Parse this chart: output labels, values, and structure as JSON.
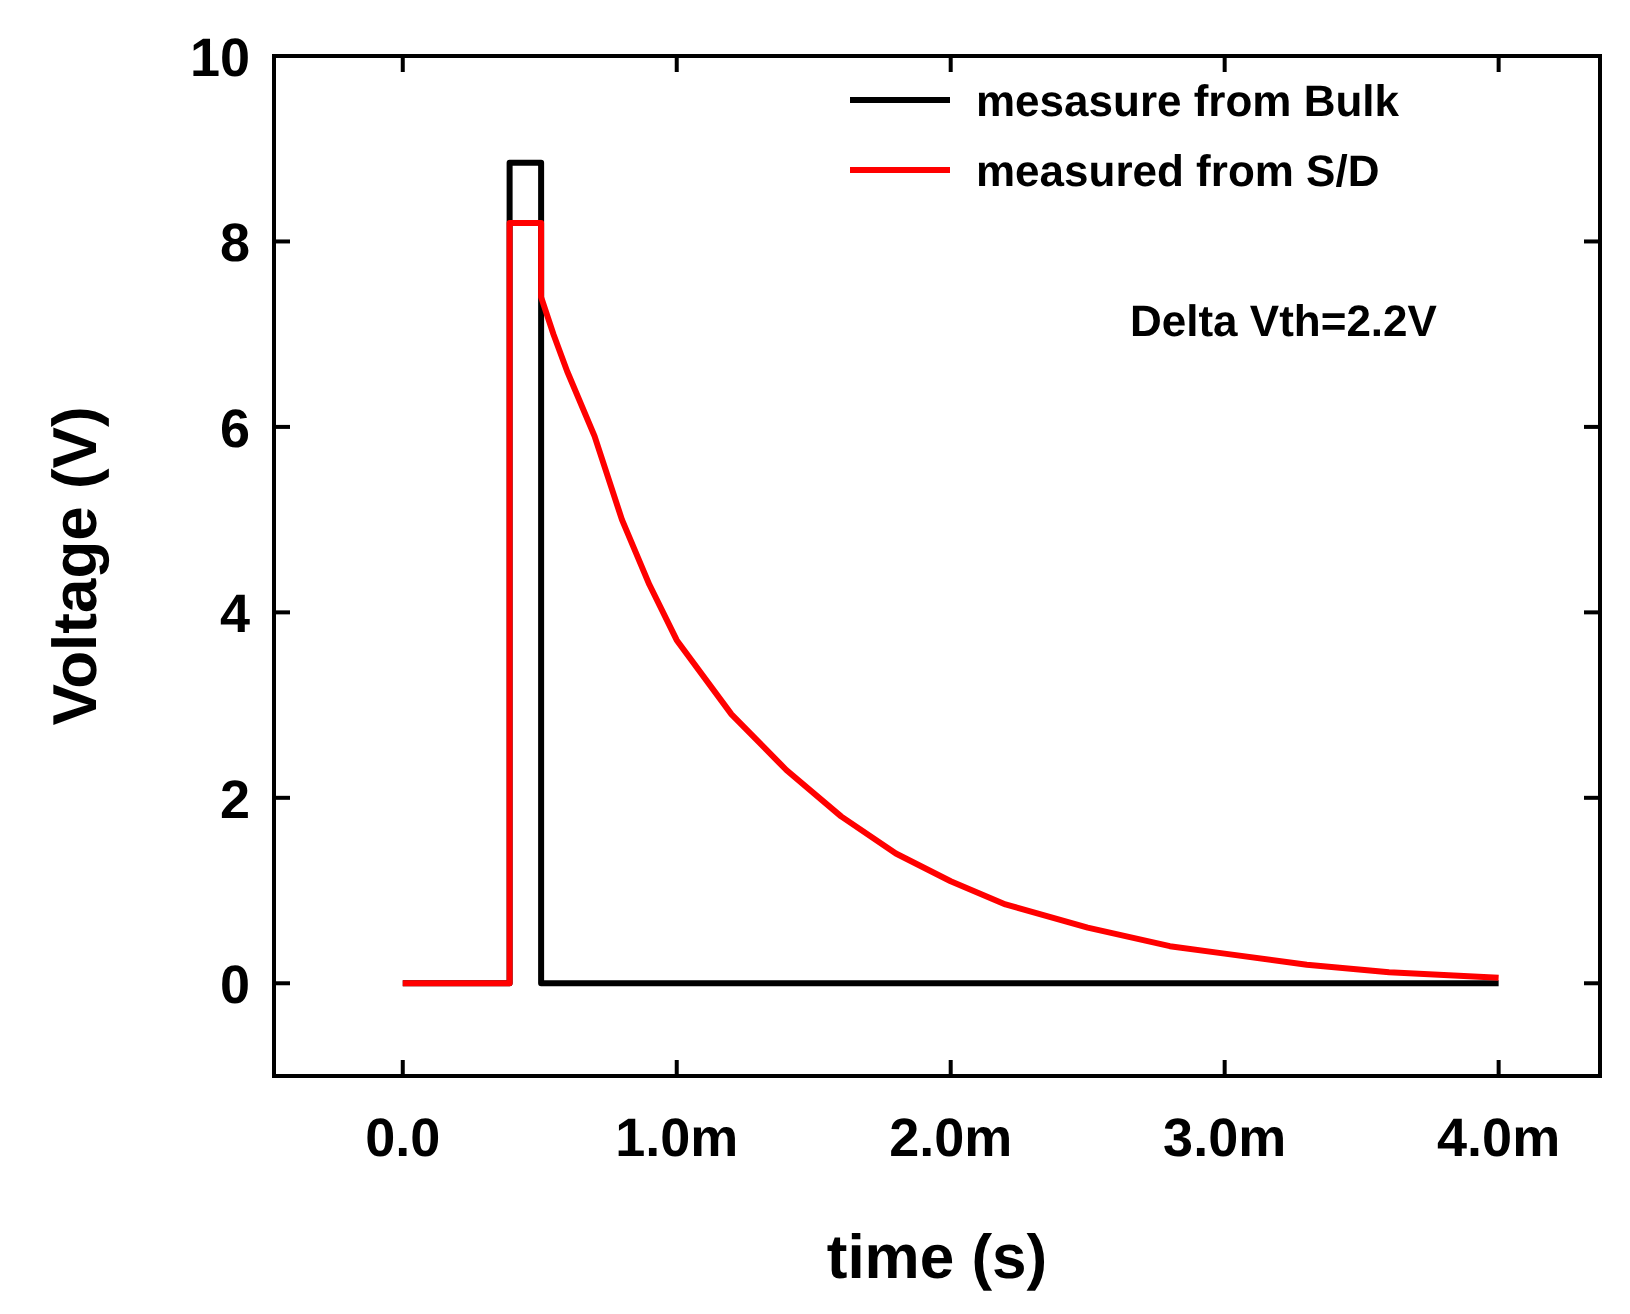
{
  "chart_data": {
    "type": "line",
    "xlabel": "time (s)",
    "ylabel": "Voltage (V)",
    "xlim": [
      -0.47,
      4.37
    ],
    "ylim": [
      -1,
      10
    ],
    "xticks": [
      {
        "value": 0,
        "label": "0.0"
      },
      {
        "value": 1,
        "label": "1.0m"
      },
      {
        "value": 2,
        "label": "2.0m"
      },
      {
        "value": 3,
        "label": "3.0m"
      },
      {
        "value": 4,
        "label": "4.0m"
      }
    ],
    "yticks": [
      0,
      2,
      4,
      6,
      8,
      10
    ],
    "legend": "top right",
    "grid": false,
    "marker": "none",
    "line_style": "solid",
    "annotations": [
      "Delta Vth=2.2V"
    ],
    "series": [
      {
        "name": "mesasure from Bulk",
        "color": "#000000",
        "x": [
          0,
          0.39,
          0.39,
          0.505,
          0.505,
          4
        ],
        "values": [
          0,
          0,
          8.85,
          8.85,
          0,
          0
        ]
      },
      {
        "name": "measured from S/D",
        "color": "#ff0000",
        "x": [
          0,
          0.39,
          0.39,
          0.505,
          0.505,
          0.55,
          0.6,
          0.7,
          0.8,
          0.9,
          1,
          1.2,
          1.4,
          1.6,
          1.8,
          2,
          2.2,
          2.5,
          2.8,
          3,
          3.3,
          3.6,
          4
        ],
        "values": [
          0,
          0,
          8.2,
          8.2,
          7.4,
          7.0,
          6.6,
          5.9,
          5.0,
          4.3,
          3.7,
          2.9,
          2.3,
          1.8,
          1.4,
          1.1,
          0.85,
          0.6,
          0.4,
          0.32,
          0.2,
          0.12,
          0.06
        ]
      }
    ]
  }
}
